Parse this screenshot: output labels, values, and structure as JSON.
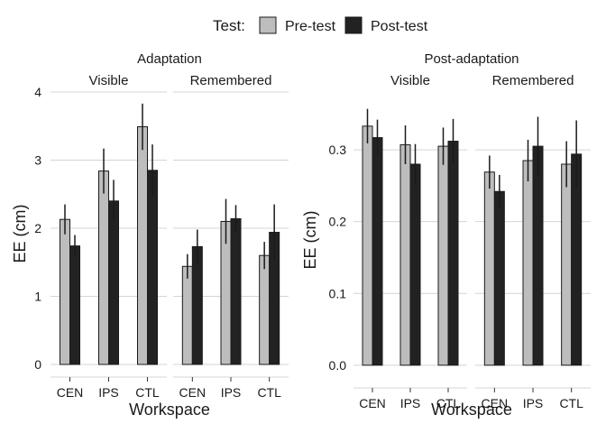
{
  "legend": {
    "title": "Test:",
    "items": [
      {
        "label": "Pre-test",
        "color": "#bdbdbd"
      },
      {
        "label": "Post-test",
        "color": "#222222"
      }
    ]
  },
  "chart_data": [
    {
      "type": "bar",
      "title": "Adaptation",
      "xlabel": "Workspace",
      "ylabel": "EE (cm)",
      "ylim": [
        0,
        4
      ],
      "yticks": [
        0,
        1,
        2,
        3,
        4
      ],
      "ytick_labels": [
        "0",
        "1",
        "2",
        "3",
        "4"
      ],
      "grid": true,
      "facets": [
        {
          "label": "Visible",
          "categories": [
            "CEN",
            "IPS",
            "CTL"
          ],
          "series": [
            {
              "name": "Pre-test",
              "values": [
                2.13,
                2.84,
                3.49
              ],
              "errors": [
                0.22,
                0.33,
                0.34
              ]
            },
            {
              "name": "Post-test",
              "values": [
                1.74,
                2.4,
                2.85
              ],
              "errors": [
                0.16,
                0.31,
                0.38
              ]
            }
          ]
        },
        {
          "label": "Remembered",
          "categories": [
            "CEN",
            "IPS",
            "CTL"
          ],
          "series": [
            {
              "name": "Pre-test",
              "values": [
                1.44,
                2.1,
                1.6
              ],
              "errors": [
                0.18,
                0.33,
                0.2
              ]
            },
            {
              "name": "Post-test",
              "values": [
                1.73,
                2.14,
                1.94
              ],
              "errors": [
                0.25,
                0.2,
                0.41
              ]
            }
          ]
        }
      ]
    },
    {
      "type": "bar",
      "title": "Post-adaptation",
      "xlabel": "Workspace",
      "ylabel": "EE (cm)",
      "ylim": [
        -0.014,
        0.378
      ],
      "yticks": [
        0,
        0.1,
        0.2,
        0.3
      ],
      "ytick_labels": [
        "0.0",
        "0.1",
        "0.2",
        "0.3"
      ],
      "grid": true,
      "facets": [
        {
          "label": "Visible",
          "categories": [
            "CEN",
            "IPS",
            "CTL"
          ],
          "series": [
            {
              "name": "Pre-test",
              "values": [
                0.333,
                0.307,
                0.305
              ],
              "errors": [
                0.024,
                0.027,
                0.026
              ]
            },
            {
              "name": "Post-test",
              "values": [
                0.317,
                0.28,
                0.312
              ],
              "errors": [
                0.025,
                0.028,
                0.031
              ]
            }
          ]
        },
        {
          "label": "Remembered",
          "categories": [
            "CEN",
            "IPS",
            "CTL"
          ],
          "series": [
            {
              "name": "Pre-test",
              "values": [
                0.269,
                0.285,
                0.28
              ],
              "errors": [
                0.023,
                0.029,
                0.032
              ]
            },
            {
              "name": "Post-test",
              "values": [
                0.242,
                0.305,
                0.294
              ],
              "errors": [
                0.023,
                0.041,
                0.047
              ]
            }
          ]
        }
      ]
    }
  ]
}
